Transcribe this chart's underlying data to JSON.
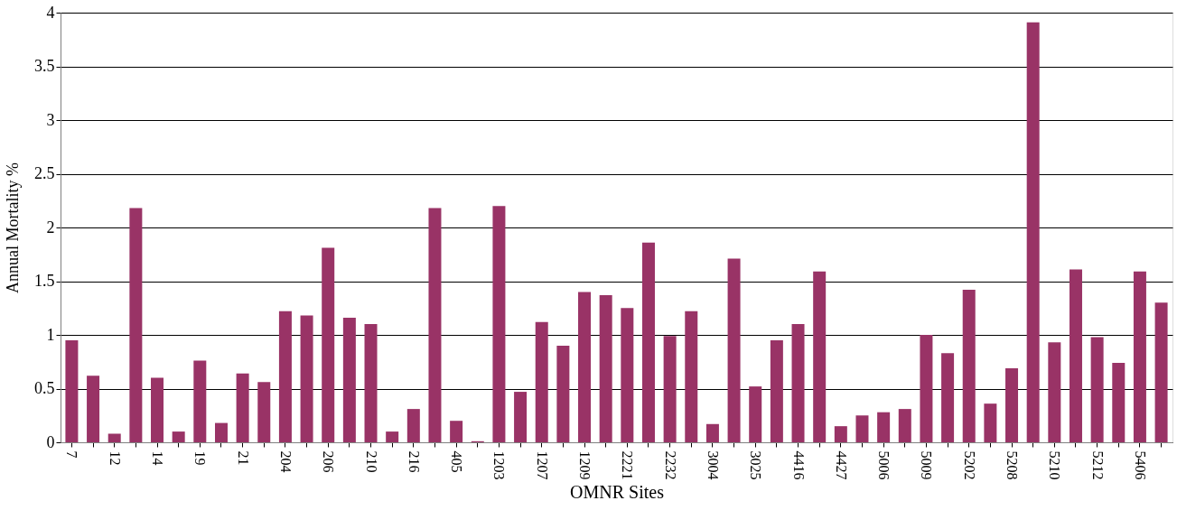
{
  "chart_data": {
    "type": "bar",
    "xlabel": "OMNR Sites",
    "ylabel": "Annual Mortality  %",
    "categories": [
      "7",
      null,
      "12",
      null,
      "14",
      null,
      "19",
      null,
      "21",
      null,
      "204",
      null,
      "206",
      null,
      "210",
      null,
      "216",
      null,
      "405",
      null,
      "1203",
      null,
      "1207",
      null,
      "1209",
      null,
      "2221",
      null,
      "2232",
      null,
      "3004",
      null,
      "3025",
      null,
      "4416",
      null,
      "4427",
      null,
      "5006",
      null,
      "5009",
      null,
      "5202",
      null,
      "5208",
      null,
      "5210",
      null,
      "5212",
      null,
      "5406",
      null
    ],
    "values": [
      0.95,
      0.62,
      0.08,
      2.18,
      0.6,
      0.1,
      0.76,
      0.18,
      0.64,
      0.56,
      1.22,
      1.18,
      1.81,
      1.16,
      1.1,
      0.1,
      0.31,
      2.18,
      0.2,
      0.01,
      2.2,
      0.47,
      1.12,
      0.9,
      1.4,
      1.37,
      1.25,
      1.86,
      0.99,
      1.22,
      0.17,
      1.71,
      0.52,
      0.95,
      1.1,
      1.59,
      0.15,
      0.25,
      0.28,
      0.31,
      1.0,
      0.83,
      1.42,
      0.36,
      0.69,
      3.91,
      0.93,
      1.61,
      0.98,
      0.74,
      1.59,
      1.3
    ],
    "color": "#993366",
    "ylim": [
      0,
      4
    ],
    "yticks": [
      0,
      0.5,
      1,
      1.5,
      2,
      2.5,
      3,
      3.5,
      4
    ],
    "grid": "y"
  }
}
